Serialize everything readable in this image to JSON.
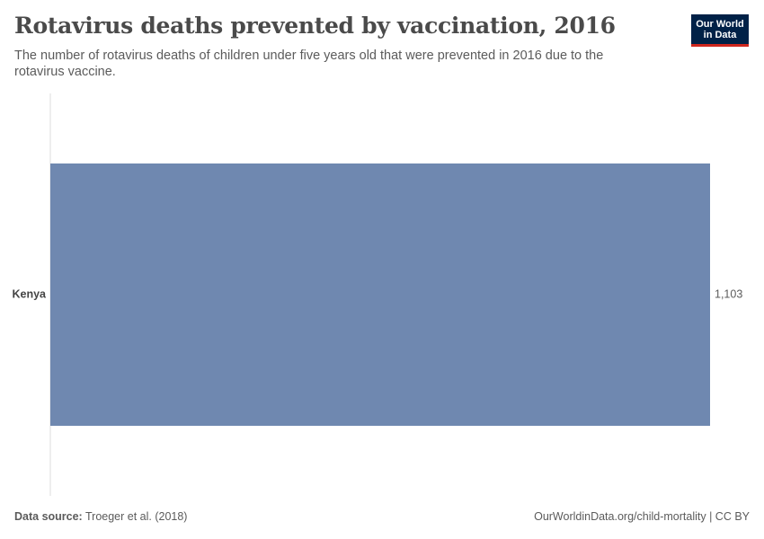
{
  "header": {
    "title": "Rotavirus deaths prevented by vaccination, 2016",
    "subtitle": "The number of rotavirus deaths of children under five years old that were prevented in 2016 due to the rotavirus vaccine.",
    "logo_line1": "Our World",
    "logo_line2": "in Data"
  },
  "footer": {
    "source_label": "Data source:",
    "source_text": "Troeger et al. (2018)",
    "url_text": "OurWorldinData.org/child-mortality",
    "separator": " | ",
    "license_text": "CC BY"
  },
  "colors": {
    "bar": "#6f88b0",
    "axis": "#dddddd",
    "label": "#444444",
    "value": "#5b5b5b"
  },
  "chart_data": {
    "type": "bar",
    "orientation": "horizontal",
    "categories": [
      "Kenya"
    ],
    "values": [
      1103
    ],
    "value_labels": [
      "1,103"
    ],
    "xlim": [
      0,
      1103
    ],
    "grid": false,
    "legend": "none"
  }
}
